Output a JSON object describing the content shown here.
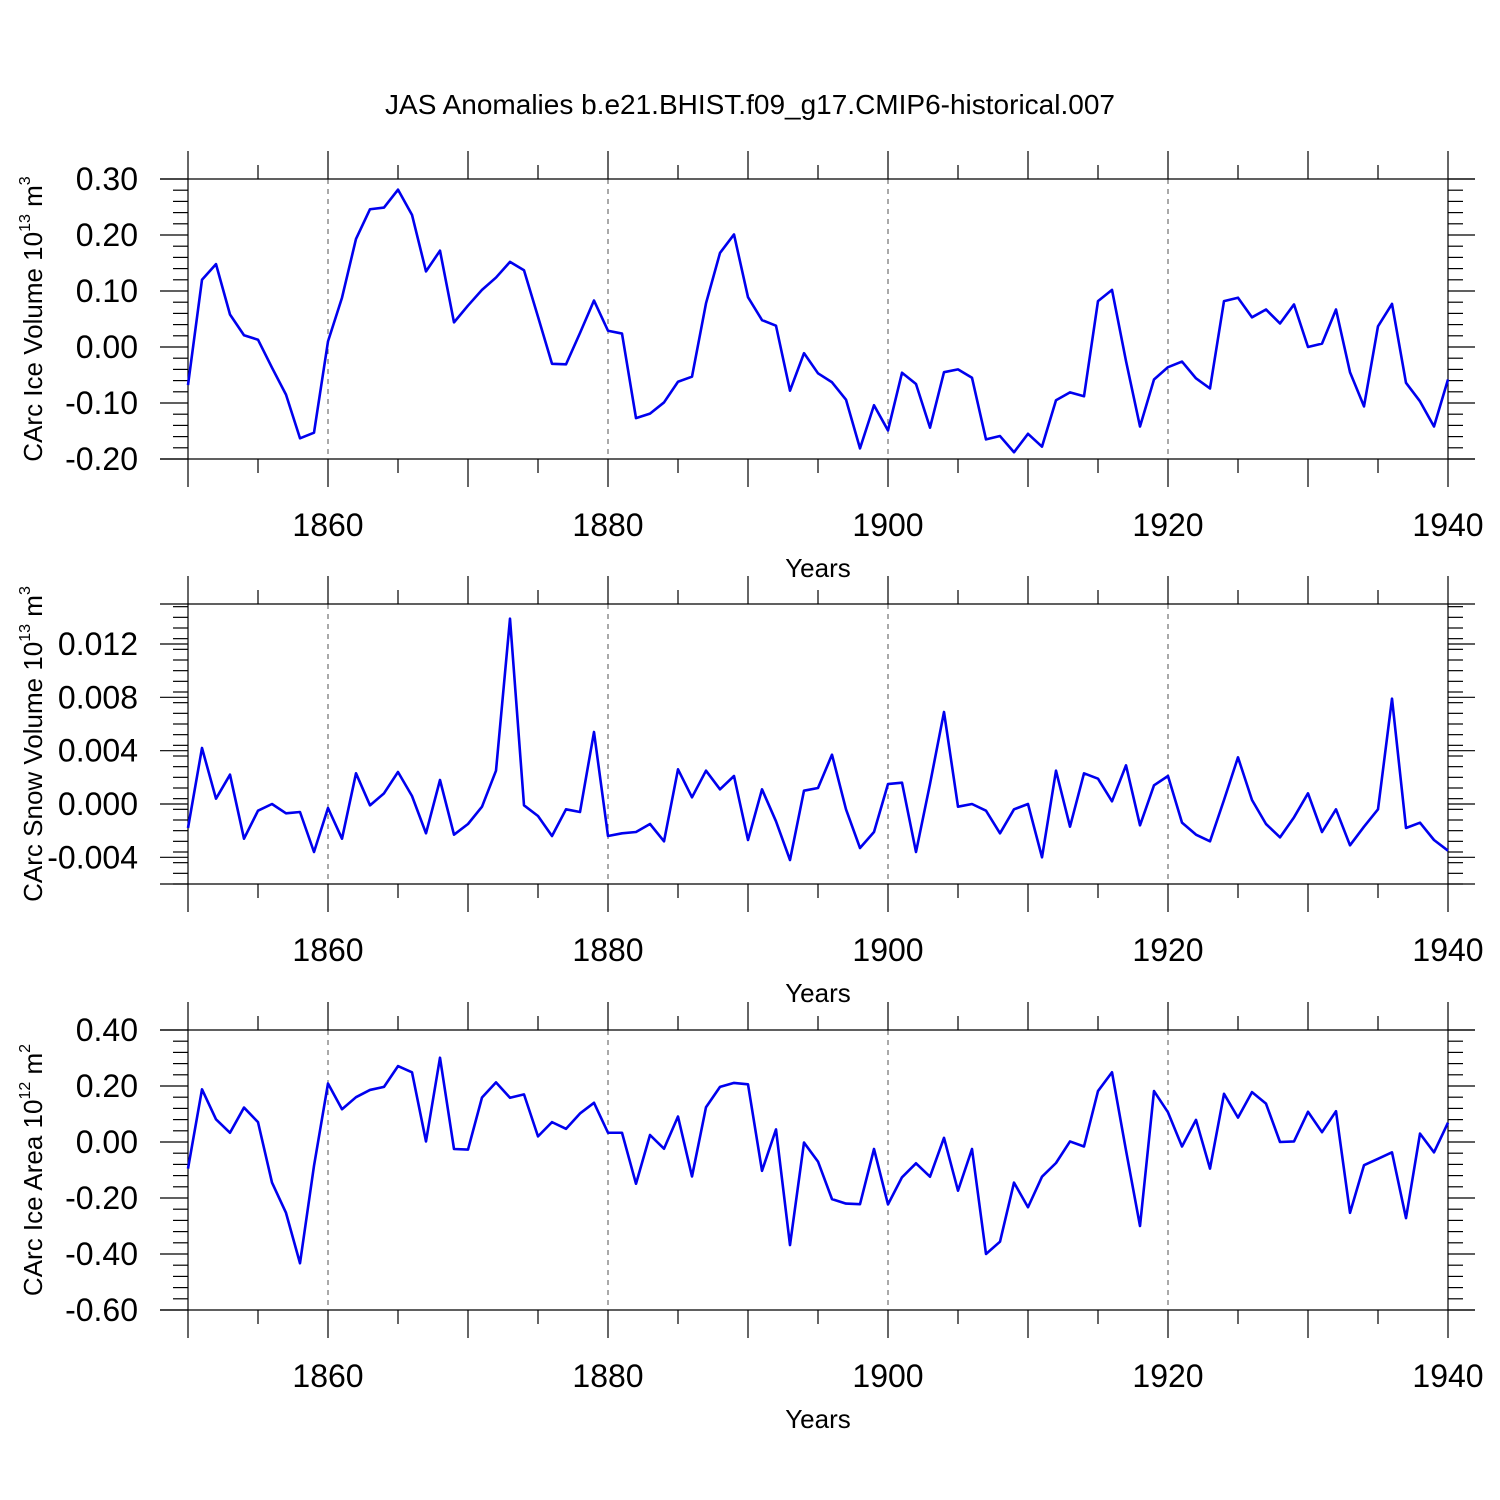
{
  "figure": {
    "title": "JAS Anomalies b.e21.BHIST.f09_g17.CMIP6-historical.007",
    "line_color": "#0000ee"
  },
  "chart_data": [
    {
      "type": "line",
      "title": "",
      "xlabel": "Years",
      "ylabel": {
        "text": "CArc Ice Volume 10",
        "exp": "13",
        "unit": " m",
        "unit_exp": "3"
      },
      "xlim": [
        1850,
        1940
      ],
      "ylim": [
        -0.2,
        0.3
      ],
      "yticks": [
        -0.2,
        -0.1,
        0.0,
        0.1,
        0.2,
        0.3
      ],
      "ytick_labels": [
        "-0.20",
        "-0.10",
        "0.00",
        "0.10",
        "0.20",
        "0.30"
      ],
      "xticks": [
        1860,
        1880,
        1900,
        1920,
        1940
      ],
      "xtick_labels": [
        "1860",
        "1880",
        "1900",
        "1920",
        "1940"
      ],
      "grid_x": [
        1860,
        1880,
        1900,
        1920
      ],
      "x_start": 1850,
      "series": [
        {
          "values": [
            -0.068,
            0.12,
            0.148,
            0.058,
            0.021,
            0.013,
            -0.037,
            -0.085,
            -0.163,
            -0.153,
            0.01,
            0.088,
            0.193,
            0.246,
            0.249,
            0.281,
            0.236,
            0.135,
            0.172,
            0.044,
            0.074,
            0.102,
            0.124,
            0.152,
            0.137,
            0.054,
            -0.03,
            -0.031,
            0.025,
            0.083,
            0.029,
            0.024,
            -0.127,
            -0.119,
            -0.099,
            -0.062,
            -0.053,
            0.078,
            0.168,
            0.201,
            0.089,
            0.048,
            0.038,
            -0.078,
            -0.011,
            -0.047,
            -0.063,
            -0.094,
            -0.181,
            -0.104,
            -0.149,
            -0.046,
            -0.066,
            -0.144,
            -0.045,
            -0.04,
            -0.055,
            -0.165,
            -0.159,
            -0.188,
            -0.155,
            -0.178,
            -0.095,
            -0.081,
            -0.088,
            0.082,
            0.102,
            -0.025,
            -0.142,
            -0.058,
            -0.036,
            -0.026,
            -0.056,
            -0.074,
            0.082,
            0.088,
            0.053,
            0.067,
            0.042,
            0.076,
            0.0,
            0.006,
            0.067,
            -0.045,
            -0.106,
            0.037,
            0.077,
            -0.064,
            -0.097,
            -0.142,
            -0.058
          ]
        }
      ]
    },
    {
      "type": "line",
      "title": "",
      "xlabel": "Years",
      "ylabel": {
        "text": "CArc Snow Volume 10",
        "exp": "13",
        "unit": " m",
        "unit_exp": "3"
      },
      "xlim": [
        1850,
        1940
      ],
      "ylim": [
        -0.006,
        0.015
      ],
      "yticks": [
        -0.004,
        0.0,
        0.004,
        0.008,
        0.012
      ],
      "ytick_labels": [
        "-0.004",
        "0.000",
        "0.004",
        "0.008",
        "0.012"
      ],
      "xticks": [
        1860,
        1880,
        1900,
        1920,
        1940
      ],
      "xtick_labels": [
        "1860",
        "1880",
        "1900",
        "1920",
        "1940"
      ],
      "grid_x": [
        1860,
        1880,
        1900,
        1920
      ],
      "x_start": 1850,
      "series": [
        {
          "values": [
            -0.0018,
            0.0042,
            0.0004,
            0.0022,
            -0.0026,
            -0.0005,
            0.0,
            -0.0007,
            -0.0006,
            -0.0036,
            -0.0003,
            -0.0026,
            0.0023,
            -0.0001,
            0.0008,
            0.0024,
            0.0006,
            -0.0022,
            0.0018,
            -0.0023,
            -0.0015,
            -0.0002,
            0.0025,
            0.0139,
            -0.0001,
            -0.0009,
            -0.0024,
            -0.0004,
            -0.0006,
            0.0054,
            -0.0024,
            -0.0022,
            -0.0021,
            -0.0015,
            -0.0028,
            0.0026,
            0.0005,
            0.0025,
            0.0011,
            0.0021,
            -0.0027,
            0.0011,
            -0.0013,
            -0.0042,
            0.001,
            0.0012,
            0.0037,
            -0.0004,
            -0.0033,
            -0.0021,
            0.0015,
            0.0016,
            -0.0036,
            0.0015,
            0.0069,
            -0.0002,
            0.0,
            -0.0005,
            -0.0022,
            -0.0004,
            0.0,
            -0.004,
            0.0025,
            -0.0017,
            0.0023,
            0.0019,
            0.0002,
            0.0029,
            -0.0016,
            0.0014,
            0.0021,
            -0.0014,
            -0.0023,
            -0.0028,
            0.0003,
            0.0035,
            0.0003,
            -0.0015,
            -0.0025,
            -0.001,
            0.0008,
            -0.0021,
            -0.0004,
            -0.0031,
            -0.0017,
            -0.0004,
            0.0079,
            -0.0018,
            -0.0014,
            -0.0027,
            -0.0035
          ]
        }
      ]
    },
    {
      "type": "line",
      "title": "",
      "xlabel": "Years",
      "ylabel": {
        "text": "CArc Ice Area 10",
        "exp": "12",
        "unit": " m",
        "unit_exp": "2"
      },
      "xlim": [
        1850,
        1940
      ],
      "ylim": [
        -0.6,
        0.4
      ],
      "yticks": [
        -0.6,
        -0.4,
        -0.2,
        0.0,
        0.2,
        0.4
      ],
      "ytick_labels": [
        "-0.60",
        "-0.40",
        "-0.20",
        "0.00",
        "0.20",
        "0.40"
      ],
      "xticks": [
        1860,
        1880,
        1900,
        1920,
        1940
      ],
      "xtick_labels": [
        "1860",
        "1880",
        "1900",
        "1920",
        "1940"
      ],
      "grid_x": [
        1860,
        1880,
        1900,
        1920
      ],
      "x_start": 1850,
      "series": [
        {
          "values": [
            -0.095,
            0.188,
            0.081,
            0.033,
            0.123,
            0.071,
            -0.145,
            -0.253,
            -0.433,
            -0.085,
            0.209,
            0.117,
            0.16,
            0.186,
            0.197,
            0.271,
            0.249,
            0.002,
            0.301,
            -0.025,
            -0.027,
            0.159,
            0.213,
            0.158,
            0.17,
            0.02,
            0.071,
            0.047,
            0.102,
            0.14,
            0.033,
            0.033,
            -0.149,
            0.025,
            -0.024,
            0.091,
            -0.123,
            0.124,
            0.197,
            0.211,
            0.206,
            -0.103,
            0.045,
            -0.368,
            -0.002,
            -0.07,
            -0.204,
            -0.22,
            -0.222,
            -0.025,
            -0.223,
            -0.126,
            -0.076,
            -0.124,
            0.015,
            -0.174,
            -0.025,
            -0.4,
            -0.356,
            -0.145,
            -0.233,
            -0.124,
            -0.075,
            0.002,
            -0.016,
            0.182,
            0.249,
            -0.03,
            -0.3,
            0.182,
            0.106,
            -0.016,
            0.079,
            -0.095,
            0.172,
            0.087,
            0.178,
            0.137,
            0.0,
            0.002,
            0.108,
            0.035,
            0.11,
            -0.253,
            -0.083,
            -0.06,
            -0.037,
            -0.272,
            0.03,
            -0.037,
            0.069
          ]
        }
      ]
    }
  ]
}
